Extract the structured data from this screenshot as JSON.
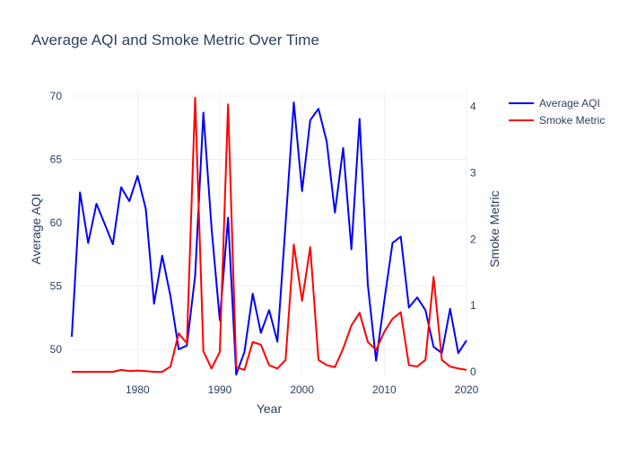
{
  "colors": {
    "series_aqi": "#0000ff",
    "series_smoke": "#ff0000",
    "text": "#2a3f5f",
    "grid": "#ebf0f8",
    "background": "#ffffff"
  },
  "chart_data": {
    "type": "line",
    "title": "Average AQI and Smoke Metric Over Time",
    "xlabel": "Year",
    "ylabel": "Average AQI",
    "y2label": "Smoke Metric",
    "xlim": [
      1972,
      2020
    ],
    "ylim": [
      47.8,
      70.5
    ],
    "y2lim": [
      -0.08,
      4.25
    ],
    "x_ticks": [
      1980,
      1990,
      2000,
      2010,
      2020
    ],
    "y_ticks": [
      50,
      55,
      60,
      65,
      70
    ],
    "y2_ticks": [
      0,
      1,
      2,
      3,
      4
    ],
    "grid": true,
    "legend_position": "right",
    "series": [
      {
        "name": "Average AQI",
        "axis": "y",
        "color": "#0000ff",
        "x": [
          1972,
          1973,
          1974,
          1975,
          1976,
          1977,
          1978,
          1979,
          1980,
          1981,
          1982,
          1983,
          1984,
          1985,
          1986,
          1987,
          1988,
          1989,
          1990,
          1991,
          1992,
          1993,
          1994,
          1995,
          1996,
          1997,
          1998,
          1999,
          2000,
          2001,
          2002,
          2003,
          2004,
          2005,
          2006,
          2007,
          2008,
          2009,
          2010,
          2011,
          2012,
          2013,
          2014,
          2015,
          2016,
          2017,
          2018,
          2019,
          2020
        ],
        "values": [
          51.0,
          62.4,
          58.4,
          61.5,
          59.9,
          58.3,
          62.8,
          61.7,
          63.7,
          61.1,
          53.6,
          57.4,
          54.2,
          50.0,
          50.3,
          55.8,
          68.7,
          59.6,
          52.3,
          60.4,
          48.0,
          49.8,
          54.4,
          51.3,
          53.1,
          50.6,
          59.9,
          69.5,
          62.5,
          68.1,
          69.0,
          66.4,
          60.8,
          65.9,
          57.9,
          68.2,
          55.1,
          49.1,
          53.8,
          58.4,
          58.9,
          53.3,
          54.1,
          53.1,
          50.2,
          49.7,
          53.2,
          49.7,
          50.7
        ]
      },
      {
        "name": "Smoke Metric",
        "axis": "y2",
        "color": "#ff0000",
        "x": [
          1972,
          1973,
          1974,
          1975,
          1976,
          1977,
          1978,
          1979,
          1980,
          1981,
          1982,
          1983,
          1984,
          1985,
          1986,
          1987,
          1988,
          1989,
          1990,
          1991,
          1992,
          1993,
          1994,
          1995,
          1996,
          1997,
          1998,
          1999,
          2000,
          2001,
          2002,
          2003,
          2004,
          2005,
          2006,
          2007,
          2008,
          2009,
          2010,
          2011,
          2012,
          2013,
          2014,
          2015,
          2016,
          2017,
          2018,
          2019,
          2020
        ],
        "values": [
          0.0,
          0.0,
          0.0,
          0.0,
          0.0,
          0.0,
          0.03,
          0.01,
          0.02,
          0.01,
          0.0,
          0.0,
          0.08,
          0.58,
          0.43,
          4.13,
          0.31,
          0.05,
          0.3,
          4.03,
          0.07,
          0.03,
          0.45,
          0.41,
          0.1,
          0.05,
          0.18,
          1.92,
          1.07,
          1.88,
          0.18,
          0.1,
          0.07,
          0.35,
          0.7,
          0.89,
          0.45,
          0.33,
          0.6,
          0.8,
          0.9,
          0.1,
          0.08,
          0.18,
          1.43,
          0.18,
          0.08,
          0.05,
          0.03
        ]
      }
    ]
  }
}
